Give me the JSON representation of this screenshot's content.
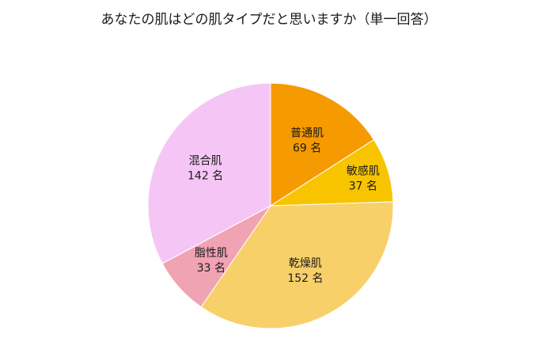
{
  "chart_data": {
    "type": "pie",
    "title": "あなたの肌はどの肌タイプだと思いますか（単一回答）",
    "unit": "名",
    "start_angle_deg": 0,
    "direction": "clockwise",
    "slices": [
      {
        "label": "普通肌",
        "value": 69,
        "value_text": "69 名",
        "color": "#F59A00"
      },
      {
        "label": "敏感肌",
        "value": 37,
        "value_text": "37 名",
        "color": "#F8C400"
      },
      {
        "label": "乾燥肌",
        "value": 152,
        "value_text": "152 名",
        "color": "#F8D06A"
      },
      {
        "label": "脂性肌",
        "value": 33,
        "value_text": "33 名",
        "color": "#F0A3B3"
      },
      {
        "label": "混合肌",
        "value": 142,
        "value_text": "142 名",
        "color": "#F5C6F5"
      }
    ]
  }
}
